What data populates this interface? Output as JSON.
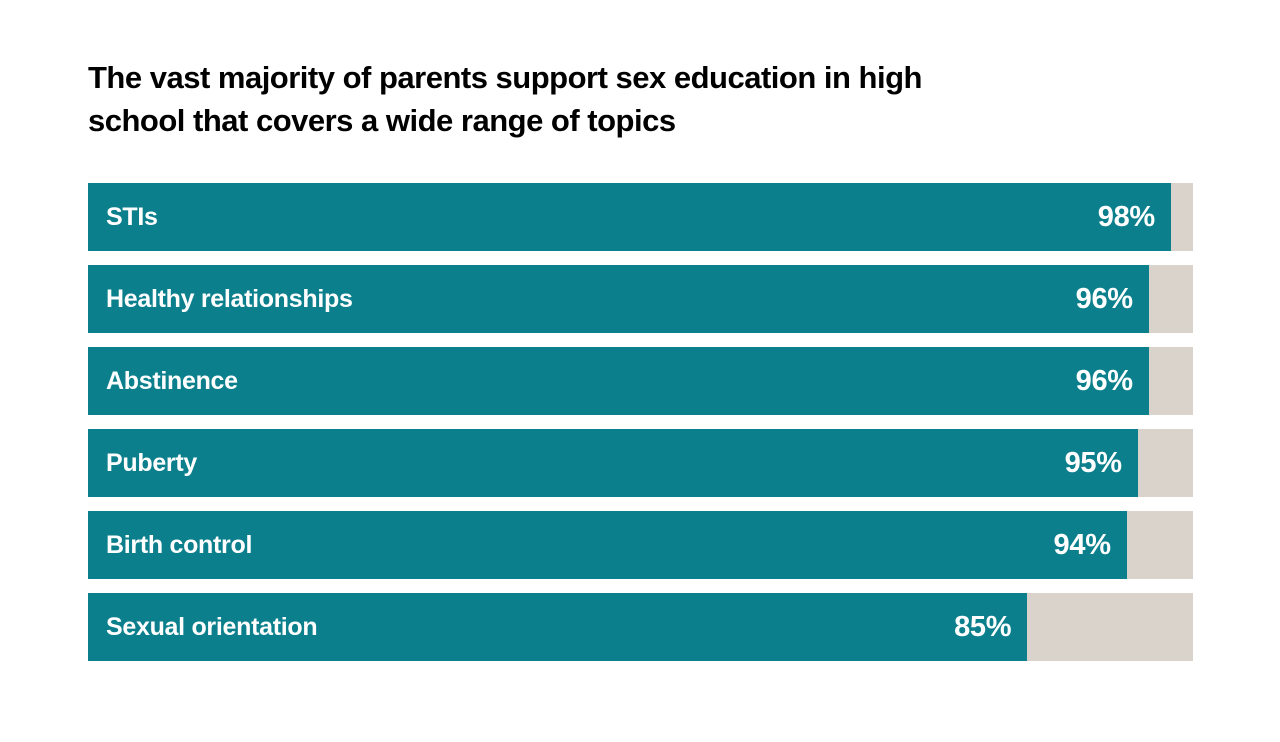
{
  "header": {
    "title_line1": "The vast majority of parents support sex education in high",
    "title_line2": "school that covers a wide range of topics"
  },
  "colors": {
    "background": "#FFFFFF",
    "title_text": "#000000",
    "bar_fill": "#0B7F8C",
    "bar_track": "#D9D3CC",
    "bar_text": "#FFFFFF"
  },
  "chart_data": {
    "type": "bar",
    "orientation": "horizontal",
    "title": "The vast majority of parents support sex education in high school that covers a wide range of topics",
    "categories": [
      "STIs",
      "Healthy relationships",
      "Abstinence",
      "Puberty",
      "Birth control",
      "Sexual orientation"
    ],
    "values": [
      98,
      96,
      96,
      95,
      94,
      85
    ],
    "value_labels": [
      "98%",
      "96%",
      "96%",
      "95%",
      "94%",
      "85%"
    ],
    "unit": "%",
    "xlim": [
      0,
      100
    ],
    "grid": false,
    "legend": "none",
    "value_label_position": "inside-right",
    "category_label_position": "inside-left"
  }
}
